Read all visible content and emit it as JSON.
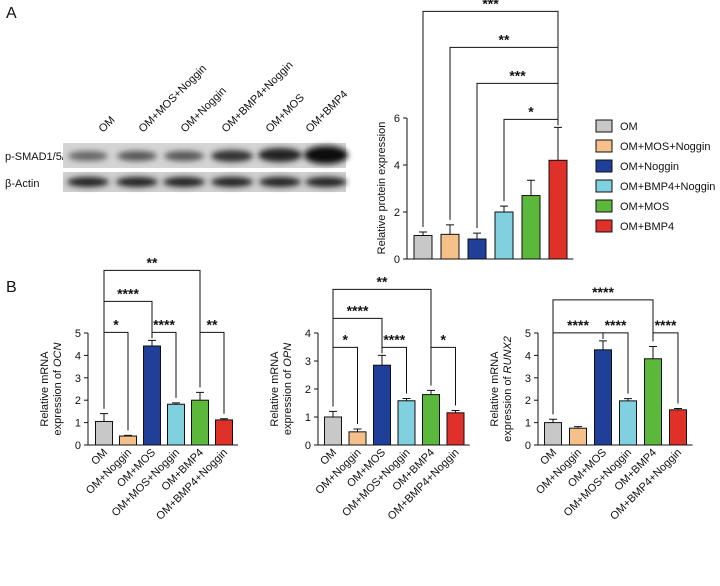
{
  "panels": [
    "A",
    "B"
  ],
  "blot": {
    "lanes": [
      "OM",
      "OM+MOS+Noggin",
      "OM+Noggin",
      "OM+BMP4+Noggin",
      "OM+MOS",
      "OM+BMP4"
    ],
    "rows": [
      "p-SMAD1/5/9",
      "β-Actin"
    ]
  },
  "chart_data": [
    {
      "type": "bar",
      "y_label": [
        "Relative protein expression"
      ],
      "legend": "right",
      "categories": [
        "OM",
        "OM+MOS+Noggin",
        "OM+Noggin",
        "OM+BMP4+Noggin",
        "OM+MOS",
        "OM+BMP4"
      ],
      "values": [
        1.0,
        1.05,
        0.85,
        2.0,
        2.7,
        4.2
      ],
      "errors": [
        0.15,
        0.4,
        0.25,
        0.25,
        0.65,
        1.4
      ],
      "colors": [
        "#c8c8c8",
        "#f5c08a",
        "#1f3f99",
        "#80d0e0",
        "#5cb83a",
        "#e0302a"
      ],
      "ylim": [
        0,
        6
      ],
      "yticks": [
        0,
        2,
        4,
        6
      ],
      "significance": [
        {
          "from": 3,
          "to": 5,
          "label": "*"
        },
        {
          "from": 2,
          "to": 5,
          "label": "***"
        },
        {
          "from": 1,
          "to": 5,
          "label": "**"
        },
        {
          "from": 0,
          "to": 5,
          "label": "***"
        }
      ]
    },
    {
      "type": "bar",
      "y_label": [
        "Relative mRNA",
        "expression of"
      ],
      "gene": "OCN",
      "categories": [
        "OM",
        "OM+Noggin",
        "OM+MOS",
        "OM+MOS+Noggin",
        "OM+BMP4",
        "OM+BMP4+Noggin"
      ],
      "values": [
        1.05,
        0.4,
        4.42,
        1.82,
        2.0,
        1.12
      ],
      "errors": [
        0.35,
        0.03,
        0.25,
        0.06,
        0.35,
        0.05
      ],
      "colors": [
        "#c8c8c8",
        "#f5c08a",
        "#1f3f99",
        "#80d0e0",
        "#5cb83a",
        "#e0302a"
      ],
      "ylim": [
        0,
        5
      ],
      "yticks": [
        0,
        1,
        2,
        3,
        4,
        5
      ],
      "significance": [
        {
          "from": 0,
          "to": 1,
          "label": "*"
        },
        {
          "from": 2,
          "to": 3,
          "label": "****"
        },
        {
          "from": 4,
          "to": 5,
          "label": "**"
        },
        {
          "from": 0,
          "to": 2,
          "label": "****"
        },
        {
          "from": 0,
          "to": 4,
          "label": "**"
        }
      ]
    },
    {
      "type": "bar",
      "y_label": [
        "Relative mRNA",
        "expression of"
      ],
      "gene": "OPN",
      "categories": [
        "OM",
        "OM+Noggin",
        "OM+MOS",
        "OM+MOS+Noggin",
        "OM+BMP4",
        "OM+BMP4+Noggin"
      ],
      "values": [
        1.0,
        0.47,
        2.85,
        1.58,
        1.8,
        1.15
      ],
      "errors": [
        0.2,
        0.1,
        0.35,
        0.08,
        0.15,
        0.08
      ],
      "colors": [
        "#c8c8c8",
        "#f5c08a",
        "#1f3f99",
        "#80d0e0",
        "#5cb83a",
        "#e0302a"
      ],
      "ylim": [
        0,
        4
      ],
      "yticks": [
        0,
        1,
        2,
        3,
        4
      ],
      "significance": [
        {
          "from": 0,
          "to": 1,
          "label": "*"
        },
        {
          "from": 2,
          "to": 3,
          "label": "****"
        },
        {
          "from": 4,
          "to": 5,
          "label": "*"
        },
        {
          "from": 0,
          "to": 2,
          "label": "****"
        },
        {
          "from": 0,
          "to": 4,
          "label": "**"
        }
      ]
    },
    {
      "type": "bar",
      "y_label": [
        "Relative mRNA",
        "expression of"
      ],
      "gene": "RUNX2",
      "categories": [
        "OM",
        "OM+Noggin",
        "OM+MOS",
        "OM+MOS+Noggin",
        "OM+BMP4",
        "OM+BMP4+Noggin"
      ],
      "values": [
        1.0,
        0.75,
        4.25,
        1.97,
        3.85,
        1.57
      ],
      "errors": [
        0.15,
        0.07,
        0.4,
        0.1,
        0.55,
        0.06
      ],
      "colors": [
        "#c8c8c8",
        "#f5c08a",
        "#1f3f99",
        "#80d0e0",
        "#5cb83a",
        "#e0302a"
      ],
      "ylim": [
        0,
        5
      ],
      "yticks": [
        0,
        1,
        2,
        3,
        4,
        5
      ],
      "significance": [
        {
          "from": 2,
          "to": 3,
          "label": "****"
        },
        {
          "from": 4,
          "to": 5,
          "label": "****"
        },
        {
          "from": 0,
          "to": 2,
          "label": "****"
        },
        {
          "from": 0,
          "to": 4,
          "label": "****"
        }
      ]
    }
  ]
}
